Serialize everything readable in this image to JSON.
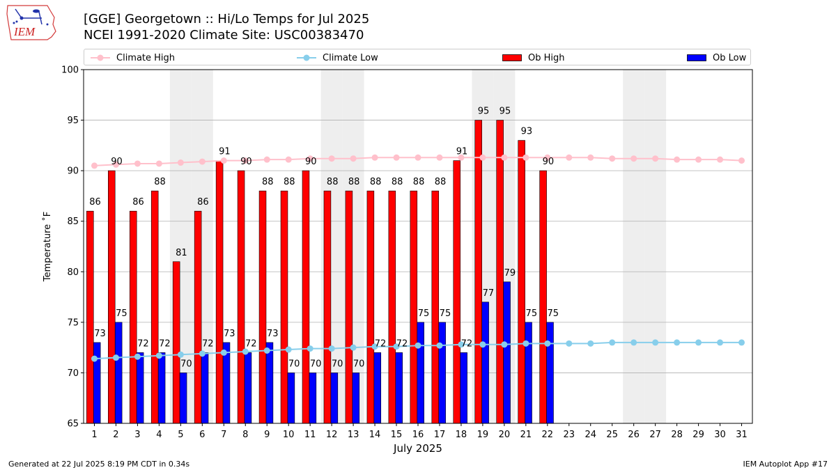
{
  "header": {
    "title_line1": "[GGE] Georgetown :: Hi/Lo Temps for Jul 2025",
    "title_line2": "NCEI 1991-2020 Climate Site: USC00383470",
    "logo_text": "IEM"
  },
  "footer": {
    "left": "Generated at 22 Jul 2025 8:19 PM CDT in 0.34s",
    "right": "IEM Autoplot App #17"
  },
  "legend": {
    "climate_high": "Climate High",
    "climate_low": "Climate Low",
    "ob_high": "Ob High",
    "ob_low": "Ob Low"
  },
  "colors": {
    "climate_high": "#ffc0cb",
    "climate_low": "#87ceeb",
    "ob_high": "#ff0000",
    "ob_low": "#0000ff",
    "weekend_shade": "#eeeeee",
    "grid": "#b0b0b0"
  },
  "chart_data": {
    "type": "bar",
    "xlabel": "July 2025",
    "ylabel": "Temperature ˚F",
    "ylim": [
      65,
      100
    ],
    "yticks": [
      65,
      70,
      75,
      80,
      85,
      90,
      95,
      100
    ],
    "grid": "horizontal",
    "legend_position": "top",
    "days": [
      1,
      2,
      3,
      4,
      5,
      6,
      7,
      8,
      9,
      10,
      11,
      12,
      13,
      14,
      15,
      16,
      17,
      18,
      19,
      20,
      21,
      22,
      23,
      24,
      25,
      26,
      27,
      28,
      29,
      30,
      31
    ],
    "shaded_days": [
      5,
      6,
      12,
      13,
      19,
      20,
      26,
      27
    ],
    "ob_high": [
      86,
      90,
      86,
      88,
      81,
      86,
      91,
      90,
      88,
      88,
      90,
      88,
      88,
      88,
      88,
      88,
      88,
      91,
      95,
      95,
      93,
      90
    ],
    "ob_low": [
      73,
      75,
      72,
      72,
      70,
      72,
      73,
      72,
      73,
      70,
      70,
      70,
      70,
      72,
      72,
      75,
      75,
      72,
      77,
      79,
      75,
      75
    ],
    "climate_high": [
      90.5,
      90.6,
      90.7,
      90.7,
      90.8,
      90.9,
      91.0,
      91.0,
      91.1,
      91.1,
      91.2,
      91.2,
      91.2,
      91.3,
      91.3,
      91.3,
      91.3,
      91.3,
      91.3,
      91.3,
      91.3,
      91.3,
      91.3,
      91.3,
      91.2,
      91.2,
      91.2,
      91.1,
      91.1,
      91.1,
      91.0
    ],
    "climate_low": [
      71.4,
      71.5,
      71.6,
      71.7,
      71.8,
      71.9,
      72.0,
      72.1,
      72.2,
      72.3,
      72.4,
      72.4,
      72.5,
      72.6,
      72.6,
      72.7,
      72.7,
      72.8,
      72.8,
      72.8,
      72.9,
      72.9,
      72.9,
      72.9,
      73.0,
      73.0,
      73.0,
      73.0,
      73.0,
      73.0,
      73.0
    ]
  }
}
